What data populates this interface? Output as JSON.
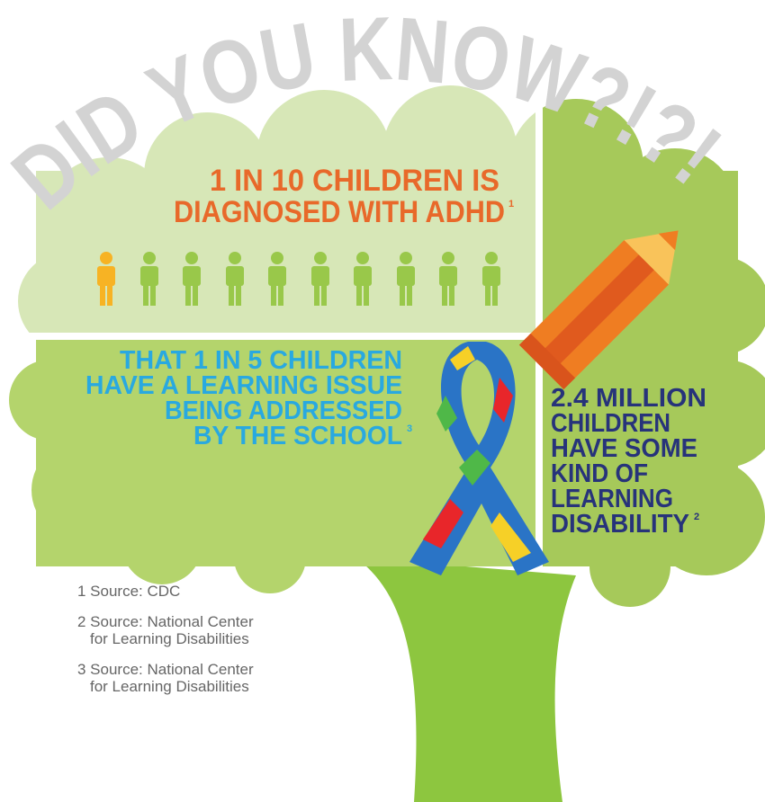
{
  "header": {
    "title": "DID YOU KNOW?!?!"
  },
  "stats": [
    {
      "lines": [
        "1 IN 10 CHILDREN IS",
        "DIAGNOSED WITH ADHD"
      ],
      "note": "1"
    },
    {
      "lines": [
        "THAT 1 IN 5 CHILDREN",
        "HAVE A LEARNING ISSUE",
        "BEING ADDRESSED",
        "BY THE SCHOOL"
      ],
      "note": "3"
    },
    {
      "lines": [
        "2.4 MILLION",
        "CHILDREN",
        "HAVE SOME",
        "KIND OF",
        "LEARNING",
        "DISABILITY"
      ],
      "note": "2"
    }
  ],
  "sources": [
    {
      "lines": [
        "1 Source: CDC"
      ]
    },
    {
      "lines": [
        "2 Source: National Center",
        "for Learning Disabilities"
      ]
    },
    {
      "lines": [
        "3 Source: National Center",
        "for Learning Disabilities"
      ]
    }
  ]
}
